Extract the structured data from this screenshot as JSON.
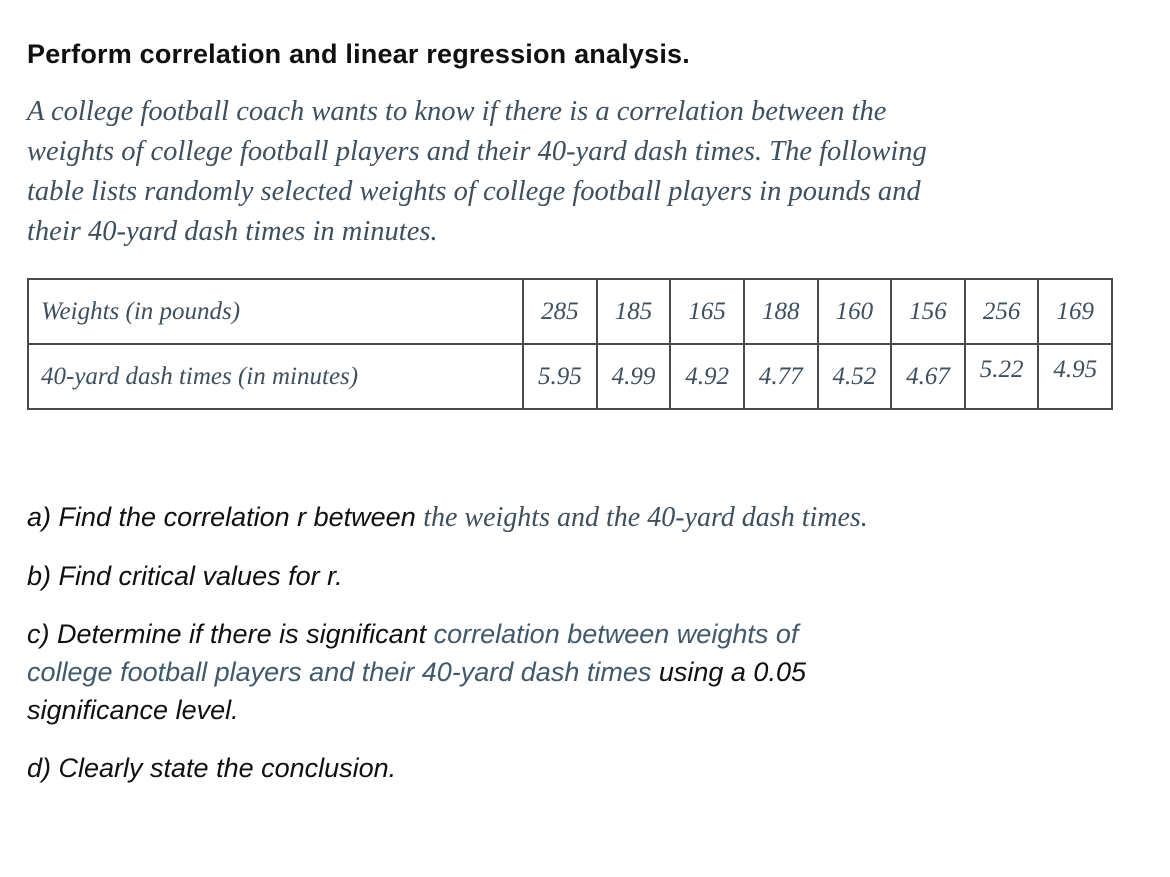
{
  "colors": {
    "ink": "#101010",
    "accent_serif": "#3e4f5e",
    "accent_sans": "#42596a",
    "table_border": "#4a4a4a",
    "paper": "#ffffff"
  },
  "header": {
    "title": "Perform correlation and linear regression analysis."
  },
  "intro_paragraph": "A college football coach wants to know if there is a correlation between the\nweights of college football players and their 40-yard dash times. The following\ntable lists randomly selected weights of college football players in pounds and\ntheir 40-yard dash times in minutes.",
  "table": {
    "rows": [
      {
        "label": "Weights (in pounds)",
        "values": [
          "285",
          "185",
          "165",
          "188",
          "160",
          "156",
          "256",
          "169"
        ]
      },
      {
        "label": "40-yard dash times (in minutes)",
        "values": [
          "5.95",
          "4.99",
          "4.92",
          "4.77",
          "4.52",
          "4.67",
          "5.22",
          "4.95"
        ]
      }
    ]
  },
  "questions": {
    "a": {
      "black": "a) Find the correlation r between ",
      "accent": "the weights and the 40-yard dash times."
    },
    "b": {
      "black": "b) Find critical values for r."
    },
    "c": {
      "black1": "c) Determine if there is significant ",
      "accent": "correlation between weights of\ncollege football players and their 40-yard dash times ",
      "black2": "using a 0.05\nsignificance level."
    },
    "d": {
      "black": "d) Clearly state the conclusion."
    }
  }
}
